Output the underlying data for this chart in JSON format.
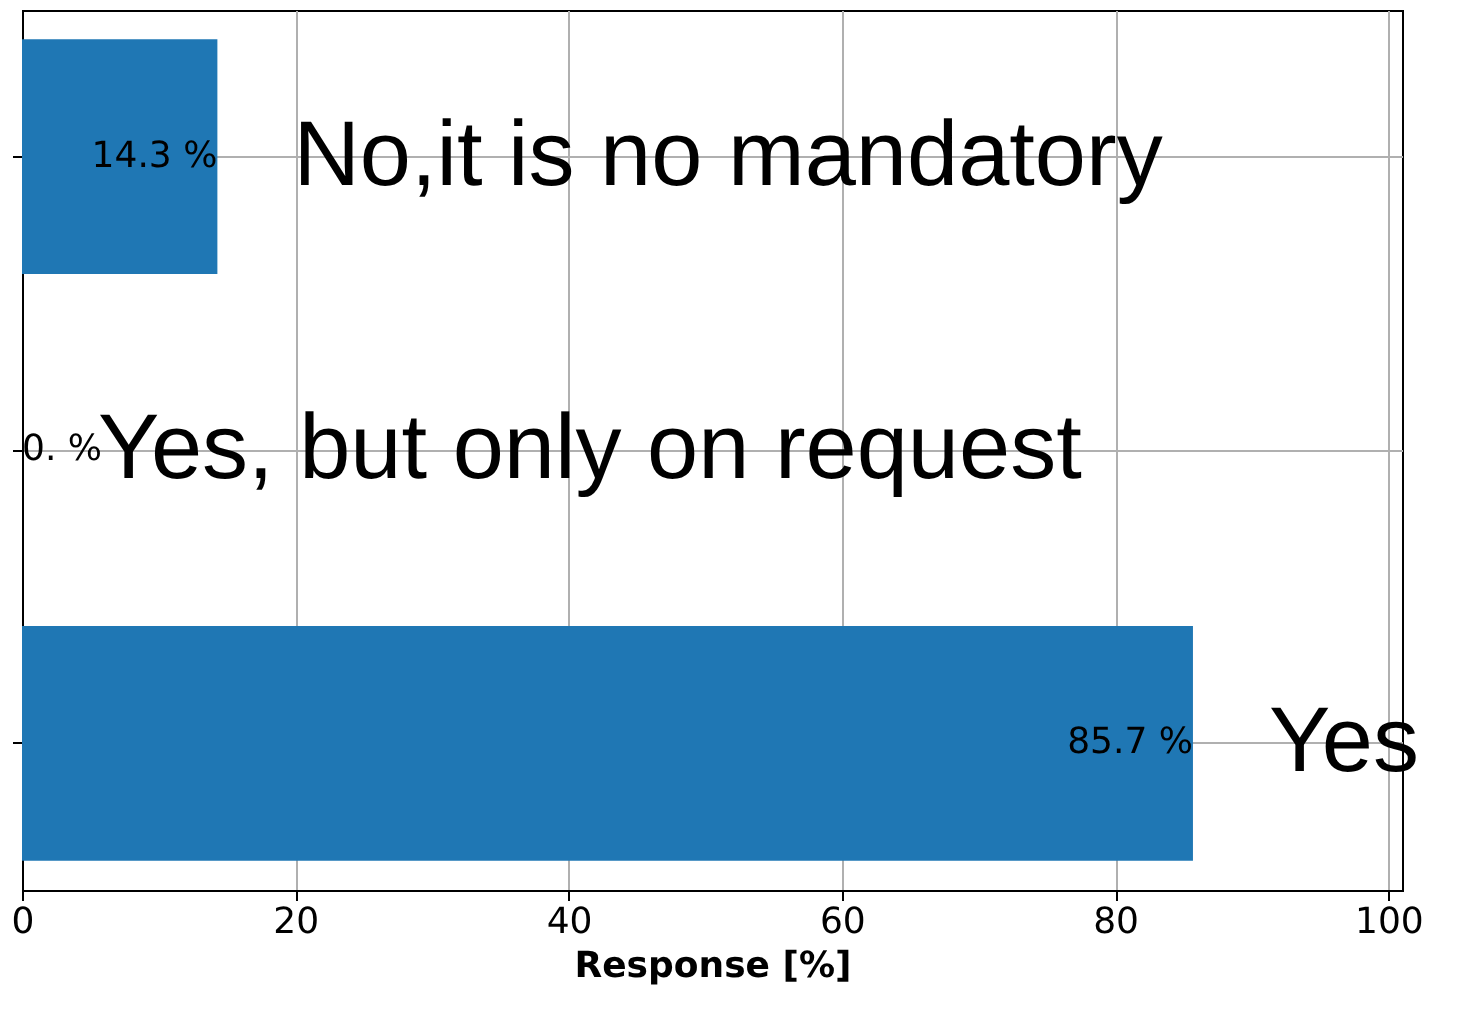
{
  "chart_data": {
    "type": "bar",
    "orientation": "horizontal",
    "categories": [
      "No,it is no mandatory",
      "Yes, but only on request",
      "Yes"
    ],
    "values": [
      14.3,
      0,
      85.7
    ],
    "value_labels": [
      "14.3 %",
      "0. %",
      "85.7 %"
    ],
    "color": "#1f77b4",
    "xlabel": "Response [%]",
    "xlim": [
      0,
      101
    ],
    "xticks": [
      0,
      20,
      40,
      60,
      80,
      100
    ],
    "tick_labels": "x",
    "grid": true
  }
}
